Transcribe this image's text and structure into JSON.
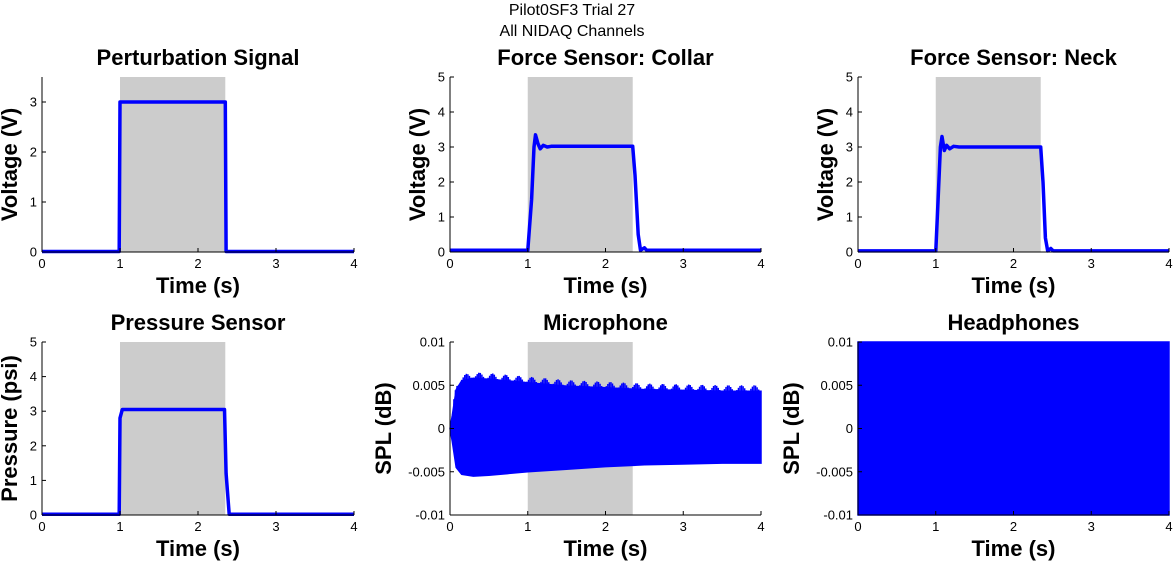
{
  "figure": {
    "title_line1": "Pilot0SF3 Trial 27",
    "title_line2": "All NIDAQ Channels"
  },
  "colors": {
    "trace": "#0000ff",
    "shade": "#cccccc",
    "axis": "#000000"
  },
  "chart_data": [
    {
      "type": "line",
      "title": "Perturbation Signal",
      "xlabel": "Time (s)",
      "ylabel": "Voltage (V)",
      "xlim": [
        0,
        4
      ],
      "ylim": [
        0,
        3.5
      ],
      "xticks": [
        "0",
        "1",
        "2",
        "3",
        "4"
      ],
      "yticks": [
        "0",
        "1",
        "2",
        "3"
      ],
      "shaded_region": [
        1.0,
        2.35
      ],
      "series": [
        {
          "x": [
            0,
            0.99,
            1.0,
            2.35,
            2.36,
            4
          ],
          "y": [
            0.01,
            0.01,
            3.0,
            3.0,
            0.01,
            0.01
          ]
        }
      ]
    },
    {
      "type": "line",
      "title": "Force Sensor: Collar",
      "xlabel": "Time (s)",
      "ylabel": "Voltage (V)",
      "xlim": [
        0,
        4
      ],
      "ylim": [
        0,
        5
      ],
      "xticks": [
        "0",
        "1",
        "2",
        "3",
        "4"
      ],
      "yticks": [
        "0",
        "1",
        "2",
        "3",
        "4",
        "5"
      ],
      "shaded_region": [
        1.0,
        2.35
      ],
      "series": [
        {
          "x": [
            0,
            1.0,
            1.05,
            1.08,
            1.1,
            1.13,
            1.16,
            1.2,
            1.25,
            1.3,
            2.35,
            2.38,
            2.42,
            2.45,
            2.5,
            2.53,
            2.56,
            4
          ],
          "y": [
            0.05,
            0.05,
            1.5,
            3.0,
            3.35,
            3.1,
            2.95,
            3.05,
            3.0,
            3.02,
            3.02,
            2.2,
            0.5,
            0.05,
            0.12,
            0.05,
            0.05,
            0.05
          ]
        }
      ]
    },
    {
      "type": "line",
      "title": "Force Sensor: Neck",
      "xlabel": "Time (s)",
      "ylabel": "Voltage (V)",
      "xlim": [
        0,
        4
      ],
      "ylim": [
        0,
        5
      ],
      "xticks": [
        "0",
        "1",
        "2",
        "3",
        "4"
      ],
      "yticks": [
        "0",
        "1",
        "2",
        "3",
        "4",
        "5"
      ],
      "shaded_region": [
        1.0,
        2.35
      ],
      "series": [
        {
          "x": [
            0,
            1.0,
            1.03,
            1.06,
            1.08,
            1.11,
            1.14,
            1.18,
            1.23,
            1.3,
            2.35,
            2.38,
            2.41,
            2.44,
            2.48,
            2.51,
            2.55,
            4
          ],
          "y": [
            0.03,
            0.03,
            1.5,
            3.0,
            3.3,
            2.9,
            3.05,
            2.95,
            3.02,
            3.0,
            3.0,
            2.0,
            0.4,
            0.03,
            0.1,
            0.03,
            0.03,
            0.03
          ]
        }
      ]
    },
    {
      "type": "line",
      "title": "Pressure Sensor",
      "xlabel": "Time (s)",
      "ylabel": "Pressure (psi)",
      "xlim": [
        0,
        4
      ],
      "ylim": [
        0,
        5
      ],
      "xticks": [
        "0",
        "1",
        "2",
        "3",
        "4"
      ],
      "yticks": [
        "0",
        "1",
        "2",
        "3",
        "4",
        "5"
      ],
      "shaded_region": [
        1.0,
        2.35
      ],
      "series": [
        {
          "x": [
            0,
            0.99,
            1.0,
            1.03,
            2.34,
            2.36,
            2.4,
            4
          ],
          "y": [
            0.02,
            0.02,
            2.8,
            3.05,
            3.05,
            1.2,
            0.02,
            0.02
          ]
        }
      ]
    },
    {
      "type": "area",
      "title": "Microphone",
      "xlabel": "Time (s)",
      "ylabel": "SPL (dB)",
      "xlim": [
        0,
        4
      ],
      "ylim": [
        -0.01,
        0.01
      ],
      "xticks": [
        "0",
        "1",
        "2",
        "3",
        "4"
      ],
      "yticks": [
        "-0.01",
        "-0.005",
        "0",
        "0.005",
        "0.01"
      ],
      "shaded_region": [
        1.0,
        2.35
      ],
      "envelope": {
        "x": [
          0,
          0.03,
          0.08,
          0.15,
          0.3,
          0.5,
          1.0,
          1.5,
          2.0,
          2.5,
          3.0,
          3.5,
          4.0
        ],
        "upper": [
          0.0,
          0.0015,
          0.0045,
          0.0055,
          0.0058,
          0.0057,
          0.0053,
          0.0049,
          0.0047,
          0.0045,
          0.0044,
          0.0043,
          0.0043
        ],
        "lower": [
          0.0,
          -0.0015,
          -0.0045,
          -0.0053,
          -0.0055,
          -0.0054,
          -0.005,
          -0.0047,
          -0.0044,
          -0.0042,
          -0.0041,
          -0.004,
          -0.004
        ]
      }
    },
    {
      "type": "area",
      "title": "Headphones",
      "xlabel": "Time (s)",
      "ylabel": "SPL (dB)",
      "xlim": [
        0,
        4
      ],
      "ylim": [
        -0.01,
        0.01
      ],
      "xticks": [
        "0",
        "1",
        "2",
        "3",
        "4"
      ],
      "yticks": [
        "-0.01",
        "-0.005",
        "0",
        "0.005",
        "0.01"
      ],
      "envelope": {
        "x": [
          0,
          4
        ],
        "upper": [
          0.01,
          0.01
        ],
        "lower": [
          -0.01,
          -0.01
        ]
      }
    }
  ]
}
